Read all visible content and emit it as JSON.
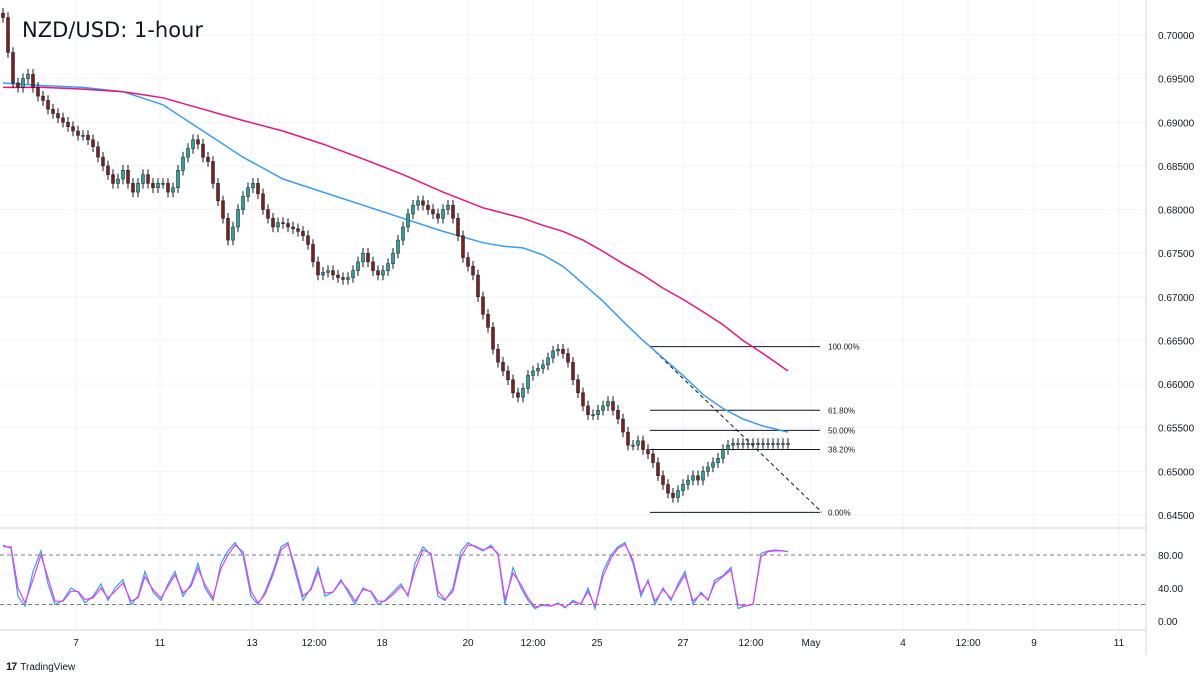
{
  "title": "NZD/USD: 1-hour",
  "branding": "TradingView",
  "colors": {
    "up_candle": "#26a69a",
    "down_candle": "#7b1f1f",
    "ma_fast": "#3b9cf0",
    "ma_slow": "#e7157b",
    "rsi_k": "#3b9cf0",
    "rsi_d": "#e040fb",
    "grid": "#f0f3fa",
    "levels": "#131722"
  },
  "chart_data": [
    {
      "type": "line",
      "title": "NZD/USD: 1-hour",
      "xlabel": "",
      "ylabel": "",
      "x_tick_labels": [
        "7",
        "11",
        "13",
        "12:00",
        "18",
        "20",
        "12:00",
        "25",
        "27",
        "12:00",
        "May",
        "4",
        "12:00",
        "9",
        "11"
      ],
      "y_tick_labels": [
        "0.70000",
        "0.69500",
        "0.69000",
        "0.68500",
        "0.68000",
        "0.67500",
        "0.67000",
        "0.66500",
        "0.66000",
        "0.65500",
        "0.65000",
        "0.64500"
      ],
      "ylim": [
        0.6432,
        0.7035
      ],
      "grid": true,
      "series": [
        {
          "kind": "candles",
          "x": [
            0,
            5,
            10,
            15,
            20,
            25,
            30,
            35,
            40,
            45,
            50,
            55,
            60,
            65,
            70,
            75,
            80,
            85,
            90,
            95,
            100,
            105,
            110,
            115,
            120,
            125,
            130,
            135,
            140,
            145,
            150,
            155,
            160,
            165,
            170,
            175,
            180,
            185,
            190,
            195,
            200,
            205,
            210,
            215,
            220,
            225,
            230,
            235,
            240,
            245,
            250,
            255,
            260,
            265,
            270,
            275,
            280,
            285,
            290,
            295,
            300,
            305,
            310,
            315,
            320,
            325,
            330,
            335,
            340,
            345,
            350,
            355,
            360,
            365,
            370,
            375,
            380,
            385,
            390,
            395,
            400,
            405,
            410,
            415,
            420,
            425,
            430,
            435,
            440,
            445,
            450,
            455,
            460,
            465,
            470,
            475,
            480,
            485,
            490,
            495,
            500,
            505,
            510,
            515,
            520,
            525,
            530,
            535,
            540,
            545,
            550,
            555,
            560,
            565,
            570,
            575,
            580,
            585,
            590,
            595,
            600,
            605,
            610,
            615,
            620,
            625,
            630,
            635,
            640,
            645,
            650,
            655,
            660,
            665,
            670,
            675,
            680,
            685,
            690,
            695,
            700,
            705,
            710,
            715,
            720,
            725,
            730,
            735,
            740,
            745,
            750,
            755,
            760,
            765,
            770,
            775,
            780,
            785
          ],
          "close": [
            0.702,
            0.698,
            0.6945,
            0.694,
            0.695,
            0.6955,
            0.694,
            0.693,
            0.6925,
            0.6915,
            0.691,
            0.6905,
            0.69,
            0.6895,
            0.689,
            0.6885,
            0.6885,
            0.688,
            0.6872,
            0.686,
            0.685,
            0.684,
            0.683,
            0.6835,
            0.6845,
            0.683,
            0.682,
            0.683,
            0.684,
            0.683,
            0.6825,
            0.683,
            0.683,
            0.682,
            0.6825,
            0.6845,
            0.686,
            0.687,
            0.688,
            0.6875,
            0.686,
            0.6855,
            0.683,
            0.681,
            0.679,
            0.6765,
            0.678,
            0.68,
            0.6815,
            0.6825,
            0.683,
            0.6818,
            0.68,
            0.679,
            0.678,
            0.6785,
            0.6784,
            0.678,
            0.6778,
            0.6775,
            0.677,
            0.676,
            0.674,
            0.6725,
            0.6728,
            0.673,
            0.6725,
            0.6722,
            0.672,
            0.6722,
            0.673,
            0.674,
            0.675,
            0.674,
            0.673,
            0.6725,
            0.673,
            0.6738,
            0.675,
            0.6765,
            0.678,
            0.6795,
            0.6805,
            0.681,
            0.6805,
            0.68,
            0.6795,
            0.679,
            0.68,
            0.6805,
            0.679,
            0.677,
            0.6745,
            0.6735,
            0.6725,
            0.67,
            0.668,
            0.6665,
            0.664,
            0.6625,
            0.6615,
            0.6605,
            0.659,
            0.6585,
            0.6595,
            0.661,
            0.6615,
            0.6618,
            0.6622,
            0.663,
            0.6638,
            0.664,
            0.6635,
            0.6625,
            0.6605,
            0.659,
            0.6575,
            0.6565,
            0.6565,
            0.657,
            0.6575,
            0.658,
            0.657,
            0.656,
            0.6545,
            0.653,
            0.653,
            0.6535,
            0.6525,
            0.652,
            0.651,
            0.6495,
            0.6485,
            0.6475,
            0.647,
            0.6478,
            0.6485,
            0.649,
            0.6495,
            0.649,
            0.65,
            0.6505,
            0.651,
            0.6515,
            0.6525,
            0.653,
            0.6532,
            0.6532,
            0.6532,
            0.6532,
            0.6532,
            0.6532,
            0.6532,
            0.6532,
            0.6532,
            0.6532,
            0.6532,
            0.6532
          ]
        },
        {
          "name": "",
          "kind": "ma_fast",
          "x": [
            0,
            40,
            80,
            120,
            160,
            200,
            240,
            280,
            320,
            360,
            400,
            440,
            480,
            500,
            520,
            540,
            560,
            580,
            600,
            620,
            640,
            660,
            680,
            700,
            720,
            740,
            760,
            785
          ],
          "y": [
            0.6945,
            0.6942,
            0.694,
            0.6935,
            0.692,
            0.689,
            0.686,
            0.6835,
            0.682,
            0.6805,
            0.679,
            0.6775,
            0.6762,
            0.6758,
            0.6756,
            0.6748,
            0.6735,
            0.6715,
            0.6695,
            0.6672,
            0.665,
            0.663,
            0.661,
            0.6588,
            0.6572,
            0.656,
            0.6552,
            0.6545
          ]
        },
        {
          "name": "",
          "kind": "ma_slow",
          "x": [
            0,
            40,
            80,
            120,
            160,
            200,
            240,
            280,
            320,
            360,
            400,
            440,
            480,
            500,
            520,
            540,
            560,
            580,
            600,
            620,
            640,
            660,
            680,
            700,
            720,
            740,
            760,
            785
          ],
          "y": [
            0.694,
            0.694,
            0.6938,
            0.6935,
            0.6928,
            0.6915,
            0.6902,
            0.689,
            0.6875,
            0.6858,
            0.684,
            0.682,
            0.6802,
            0.6796,
            0.679,
            0.6782,
            0.6775,
            0.6765,
            0.6752,
            0.6738,
            0.6725,
            0.671,
            0.6697,
            0.6683,
            0.6668,
            0.665,
            0.6635,
            0.6615
          ]
        }
      ],
      "fibonacci": {
        "levels": [
          {
            "label": "100.00%",
            "value": 0.6643
          },
          {
            "label": "61.80%",
            "value": 0.657
          },
          {
            "label": "50.00%",
            "value": 0.6547
          },
          {
            "label": "38.20%",
            "value": 0.6525
          },
          {
            "label": "0.00%",
            "value": 0.6453
          }
        ],
        "trendline": {
          "from": [
            650,
            0.6643
          ],
          "to": [
            822,
            0.6453
          ]
        }
      }
    },
    {
      "type": "line",
      "title": "",
      "y_tick_labels": [
        "80.00",
        "40.00",
        "0.00"
      ],
      "ylim": [
        0,
        100
      ],
      "dashed_levels": [
        80,
        20
      ],
      "series": [
        {
          "name": "",
          "kind": "rsi_k",
          "x": [
            0,
            8,
            15,
            22,
            30,
            38,
            45,
            52,
            60,
            68,
            75,
            82,
            90,
            98,
            105,
            112,
            120,
            128,
            135,
            142,
            150,
            158,
            165,
            172,
            180,
            188,
            195,
            202,
            210,
            218,
            225,
            232,
            240,
            248,
            255,
            262,
            270,
            278,
            285,
            292,
            300,
            308,
            315,
            322,
            330,
            338,
            345,
            352,
            360,
            368,
            375,
            382,
            390,
            398,
            405,
            412,
            420,
            428,
            435,
            442,
            450,
            458,
            465,
            472,
            480,
            488,
            495,
            502,
            510,
            518,
            525,
            532,
            540,
            548,
            555,
            562,
            570,
            578,
            585,
            592,
            600,
            608,
            615,
            622,
            630,
            638,
            645,
            652,
            660,
            668,
            675,
            682,
            690,
            698,
            705,
            712,
            720,
            728,
            735,
            742,
            750,
            758,
            765,
            772,
            780,
            785
          ],
          "y": [
            92,
            88,
            30,
            18,
            60,
            85,
            45,
            20,
            25,
            40,
            35,
            22,
            30,
            45,
            25,
            40,
            50,
            20,
            30,
            60,
            35,
            25,
            45,
            60,
            30,
            45,
            70,
            40,
            25,
            70,
            85,
            95,
            80,
            30,
            20,
            35,
            60,
            90,
            95,
            60,
            25,
            40,
            65,
            30,
            35,
            50,
            35,
            20,
            40,
            35,
            20,
            25,
            35,
            45,
            30,
            70,
            90,
            80,
            30,
            25,
            40,
            85,
            95,
            90,
            85,
            92,
            80,
            20,
            65,
            40,
            25,
            15,
            20,
            18,
            22,
            16,
            25,
            20,
            40,
            15,
            60,
            80,
            90,
            95,
            70,
            30,
            50,
            20,
            40,
            25,
            45,
            60,
            20,
            35,
            25,
            50,
            55,
            65,
            15,
            18,
            20,
            82,
            85,
            86,
            85,
            84
          ]
        },
        {
          "name": "",
          "kind": "rsi_d",
          "x": [
            0,
            8,
            15,
            22,
            30,
            38,
            45,
            52,
            60,
            68,
            75,
            82,
            90,
            98,
            105,
            112,
            120,
            128,
            135,
            142,
            150,
            158,
            165,
            172,
            180,
            188,
            195,
            202,
            210,
            218,
            225,
            232,
            240,
            248,
            255,
            262,
            270,
            278,
            285,
            292,
            300,
            308,
            315,
            322,
            330,
            338,
            345,
            352,
            360,
            368,
            375,
            382,
            390,
            398,
            405,
            412,
            420,
            428,
            435,
            442,
            450,
            458,
            465,
            472,
            480,
            488,
            495,
            502,
            510,
            518,
            525,
            532,
            540,
            548,
            555,
            562,
            570,
            578,
            585,
            592,
            600,
            608,
            615,
            622,
            630,
            638,
            645,
            652,
            660,
            668,
            675,
            682,
            690,
            698,
            705,
            712,
            720,
            728,
            735,
            742,
            750,
            758,
            765,
            772,
            780,
            785
          ],
          "y": [
            90,
            90,
            40,
            22,
            50,
            80,
            52,
            24,
            24,
            36,
            36,
            26,
            28,
            40,
            28,
            36,
            46,
            24,
            28,
            54,
            38,
            28,
            42,
            56,
            34,
            42,
            64,
            44,
            28,
            64,
            80,
            92,
            84,
            36,
            22,
            32,
            56,
            86,
            93,
            66,
            30,
            38,
            60,
            34,
            35,
            48,
            38,
            24,
            38,
            36,
            24,
            24,
            32,
            42,
            32,
            62,
            86,
            82,
            36,
            26,
            36,
            78,
            92,
            91,
            86,
            90,
            82,
            26,
            58,
            44,
            28,
            17,
            19,
            18,
            21,
            17,
            23,
            21,
            36,
            18,
            54,
            76,
            88,
            93,
            74,
            34,
            48,
            24,
            38,
            27,
            42,
            56,
            24,
            33,
            26,
            46,
            54,
            62,
            20,
            18,
            20,
            78,
            84,
            85,
            85,
            84
          ]
        }
      ]
    }
  ]
}
